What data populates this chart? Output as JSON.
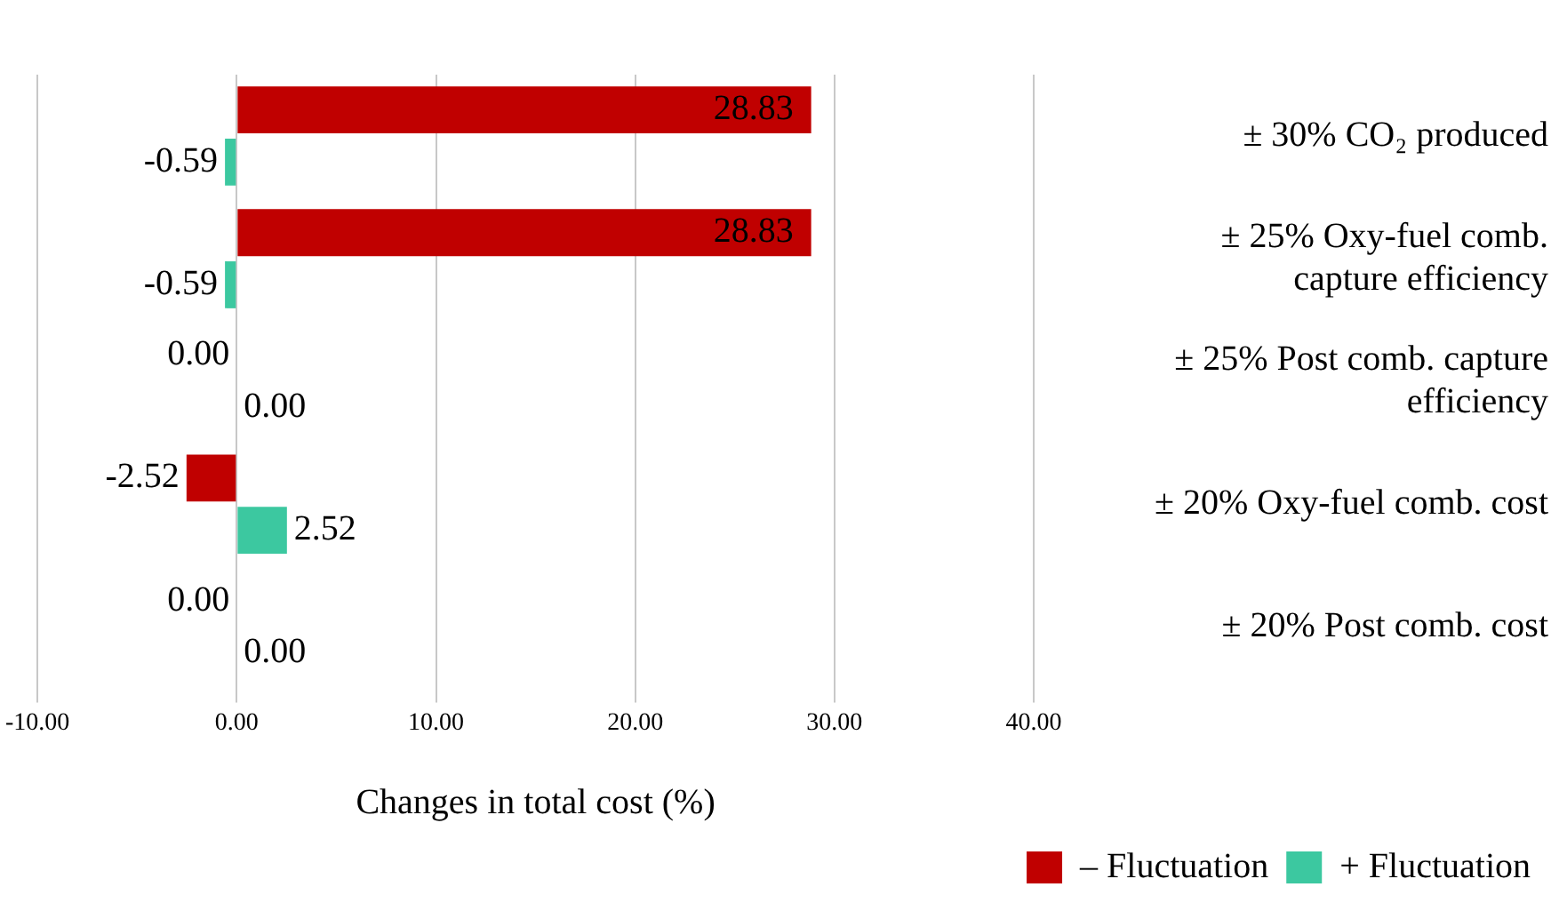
{
  "chart_data": {
    "type": "bar",
    "orientation": "horizontal",
    "xlabel": "Changes in total cost (%)",
    "categories": [
      "± 30% CO₂ produced",
      "± 25% Oxy-fuel comb. capture efficiency",
      "± 25% Post comb. capture efficiency",
      "± 20% Oxy-fuel comb. cost",
      "± 20% Post comb. cost"
    ],
    "series": [
      {
        "name": "– Fluctuation",
        "color": "#c00000",
        "values": [
          28.83,
          28.83,
          0,
          -2.52,
          0
        ],
        "value_labels": [
          "28.83",
          "28.83",
          "0.00",
          "-2.52",
          "0.00"
        ]
      },
      {
        "name": "+ Fluctuation",
        "color": "#3cc8a0",
        "values": [
          -0.59,
          -0.59,
          0,
          2.52,
          0
        ],
        "value_labels": [
          "-0.59",
          "-0.59",
          "0.00",
          "2.52",
          "0.00"
        ]
      }
    ],
    "xlim": [
      -10,
      40
    ],
    "xticks": [
      {
        "value": -10,
        "label": "-10.00"
      },
      {
        "value": 0,
        "label": "0.00"
      },
      {
        "value": 10,
        "label": "10.00"
      },
      {
        "value": 20,
        "label": "20.00"
      },
      {
        "value": 30,
        "label": "30.00"
      },
      {
        "value": 40,
        "label": "40.00"
      }
    ],
    "grid": "x",
    "legend": "bottom right"
  }
}
